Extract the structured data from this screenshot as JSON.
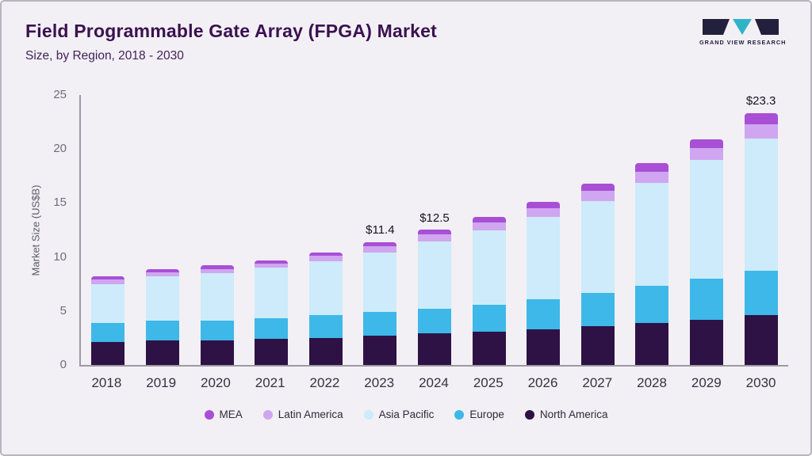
{
  "header": {
    "title": "Field Programmable Gate Array (FPGA) Market",
    "subtitle": "Size, by Region, 2018 - 2030",
    "brand": "GRAND VIEW RESEARCH"
  },
  "colors": {
    "background": "#f2f0f4",
    "frame_border": "#b8b6bc",
    "title_text": "#3b1150",
    "axis_line": "#9c9aa2",
    "brand_dark": "#23203e",
    "brand_teal": "#2fb3c7"
  },
  "chart_data": {
    "type": "bar",
    "stacked": true,
    "title": "Field Programmable Gate Array (FPGA) Market Size, by Region, 2018 - 2030",
    "xlabel": "",
    "ylabel": "Market Size (US$B)",
    "ylim": [
      0,
      25
    ],
    "yticks": [
      0,
      5,
      10,
      15,
      20,
      25
    ],
    "grid": false,
    "legend_position": "bottom",
    "stack_order": "bottom-to-top",
    "categories": [
      "2018",
      "2019",
      "2020",
      "2021",
      "2022",
      "2023",
      "2024",
      "2025",
      "2026",
      "2027",
      "2028",
      "2029",
      "2030"
    ],
    "series": [
      {
        "name": "North America",
        "color": "#2e1245",
        "values": [
          2.1,
          2.3,
          2.3,
          2.4,
          2.5,
          2.7,
          2.9,
          3.1,
          3.3,
          3.6,
          3.9,
          4.2,
          4.6
        ]
      },
      {
        "name": "Europe",
        "color": "#3db8e8",
        "values": [
          1.8,
          1.8,
          1.8,
          1.9,
          2.1,
          2.2,
          2.3,
          2.5,
          2.8,
          3.1,
          3.4,
          3.8,
          4.1
        ]
      },
      {
        "name": "Asia Pacific",
        "color": "#cdebfa",
        "values": [
          3.6,
          4.1,
          4.4,
          4.7,
          5.0,
          5.5,
          6.2,
          6.9,
          7.6,
          8.5,
          9.6,
          11.0,
          12.3
        ]
      },
      {
        "name": "Latin America",
        "color": "#cfa6ef",
        "values": [
          0.4,
          0.4,
          0.4,
          0.4,
          0.5,
          0.6,
          0.7,
          0.7,
          0.8,
          0.9,
          1.0,
          1.1,
          1.3
        ]
      },
      {
        "name": "MEA",
        "color": "#a84fd6",
        "values": [
          0.3,
          0.3,
          0.3,
          0.3,
          0.3,
          0.4,
          0.4,
          0.5,
          0.6,
          0.7,
          0.8,
          0.8,
          1.0
        ]
      }
    ],
    "legend": [
      "MEA",
      "Latin America",
      "Asia Pacific",
      "Europe",
      "North America"
    ],
    "annotations": {
      "2023": "$11.4",
      "2024": "$12.5",
      "2030": "$23.3"
    },
    "totals": [
      8.2,
      8.9,
      9.2,
      9.7,
      10.4,
      11.4,
      12.5,
      13.7,
      15.1,
      16.8,
      18.7,
      20.9,
      23.3
    ]
  }
}
